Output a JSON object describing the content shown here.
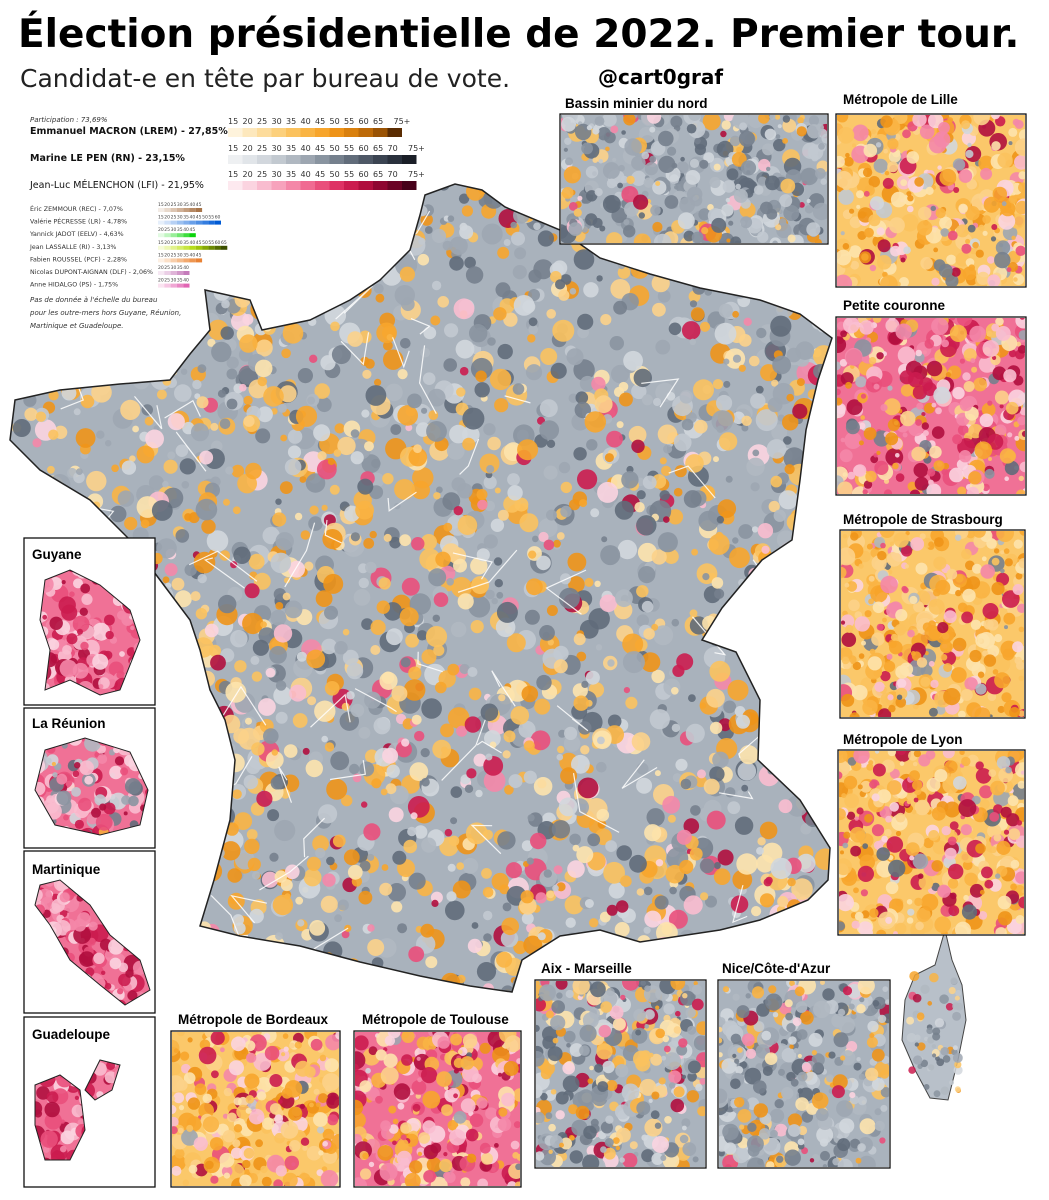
{
  "header": {
    "title": "Élection présidentielle de 2022. Premier tour.",
    "subtitle": "Candidat-e en tête par bureau de vote.",
    "handle": "@cart0graf"
  },
  "legend": {
    "participation": "Participation : 73,69%",
    "main": [
      {
        "label": "Emmanuel MACRON (LREM) -  27,85%",
        "ticks": [
          "15",
          "20",
          "25",
          "30",
          "35",
          "40",
          "45",
          "50",
          "55",
          "60",
          "65",
          "75+"
        ],
        "colors": [
          "#fef3dc",
          "#fde8bd",
          "#fddc9c",
          "#fcd07c",
          "#fbc25e",
          "#f9b444",
          "#f7a52c",
          "#ee9318",
          "#d9800e",
          "#bd6a08",
          "#9a5304",
          "#5a2c02"
        ]
      },
      {
        "label": "Marine LE PEN (RN) - 23,15%",
        "ticks": [
          "15",
          "20",
          "25",
          "30",
          "35",
          "40",
          "45",
          "50",
          "55",
          "60",
          "65",
          "70",
          "75+"
        ],
        "colors": [
          "#eef0f2",
          "#e1e5e9",
          "#d2d7dd",
          "#c2c9d0",
          "#b0b8c1",
          "#9da6b1",
          "#8994a0",
          "#75808d",
          "#616c7a",
          "#4e5866",
          "#3b4452",
          "#2a313d",
          "#1a1e27"
        ]
      },
      {
        "label": "Jean-Luc MÉLENCHON (LFI) - 21,95%",
        "ticks": [
          "15",
          "20",
          "25",
          "30",
          "35",
          "40",
          "45",
          "50",
          "55",
          "60",
          "65",
          "70",
          "75+"
        ],
        "colors": [
          "#fde9ef",
          "#fbd4e0",
          "#f9bccf",
          "#f7a2bc",
          "#f487a8",
          "#f06b92",
          "#e94f7b",
          "#de3264",
          "#cb1c4f",
          "#b00e3e",
          "#8e0631",
          "#6b0325",
          "#47011a"
        ]
      }
    ],
    "minor": [
      {
        "label": "Éric ZEMMOUR (REC) - 7,07%",
        "ticks": [
          "15",
          "20",
          "25",
          "30",
          "35",
          "40",
          "45"
        ],
        "colors": [
          "#f3ece6",
          "#e8d9cc",
          "#dcc5b2",
          "#d0b198",
          "#c39d7e",
          "#b68964",
          "#a8754a"
        ]
      },
      {
        "label": "Valérie PÉCRESSE (LR) - 4,78%",
        "ticks": [
          "15",
          "20",
          "25",
          "30",
          "35",
          "40",
          "45",
          "50",
          "55",
          "60"
        ],
        "colors": [
          "#e6effb",
          "#cfe0f8",
          "#b6d0f4",
          "#9cc0f0",
          "#82afec",
          "#689fe8",
          "#4e8ee3",
          "#347ddf",
          "#1a6cda",
          "#005bd5"
        ]
      },
      {
        "label": "Yannick JADOT (EELV) - 4,63%",
        "ticks": [
          "20",
          "25",
          "30",
          "35",
          "40",
          "45"
        ],
        "colors": [
          "#e2fbe2",
          "#bff5bf",
          "#99ee99",
          "#6ee66e",
          "#3edd3e",
          "#0ad40a"
        ]
      },
      {
        "label": "Jean LASSALLE (RI) - 3,13%",
        "ticks": [
          "15",
          "20",
          "25",
          "30",
          "35",
          "40",
          "45",
          "50",
          "55",
          "60",
          "65"
        ],
        "colors": [
          "#f6fbd8",
          "#edf7b5",
          "#e2f28e",
          "#d5ec66",
          "#c7e540",
          "#b6dc1c",
          "#9fc40c",
          "#86a806",
          "#6c8a03",
          "#536c01",
          "#3b4e00"
        ]
      },
      {
        "label": "Fabien ROUSSEL (PCF) - 2,28%",
        "ticks": [
          "15",
          "20",
          "25",
          "30",
          "35",
          "40",
          "45"
        ],
        "colors": [
          "#fdf0e4",
          "#fbe0c8",
          "#f8ceaa",
          "#f5bc8c",
          "#f2a96e",
          "#ee9651",
          "#e98234"
        ]
      },
      {
        "label": "Nicolas DUPONT-AIGNAN (DLF) - 2,06%",
        "ticks": [
          "20",
          "25",
          "30",
          "35",
          "40"
        ],
        "colors": [
          "#f6e8f3",
          "#ebcfe6",
          "#dfb4d8",
          "#d298c9",
          "#c47bba"
        ]
      },
      {
        "label": "Anne HIDALGO (PS) - 1,75%",
        "ticks": [
          "20",
          "25",
          "30",
          "35",
          "40"
        ],
        "colors": [
          "#fbe3f1",
          "#f6c6e3",
          "#f0a7d4",
          "#e987c4",
          "#e165b3"
        ]
      }
    ],
    "note": [
      "Pas de donnée à l'échelle du bureau",
      "pour les outre-mers hors Guyane, Réunion,",
      "Martinique et Guadeloupe."
    ]
  },
  "insets": {
    "bassin": "Bassin minier du nord",
    "lille": "Métropole de Lille",
    "petite": "Petite couronne",
    "strasbourg": "Métropole de Strasbourg",
    "lyon": "Métropole de Lyon",
    "guyane": "Guyane",
    "reunion": "La Réunion",
    "martinique": "Martinique",
    "guadeloupe": "Guadeloupe",
    "bordeaux": "Métropole de Bordeaux",
    "toulouse": "Métropole de Toulouse",
    "aix": "Aix - Marseille",
    "nice": "Nice/Côte-d'Azur"
  }
}
